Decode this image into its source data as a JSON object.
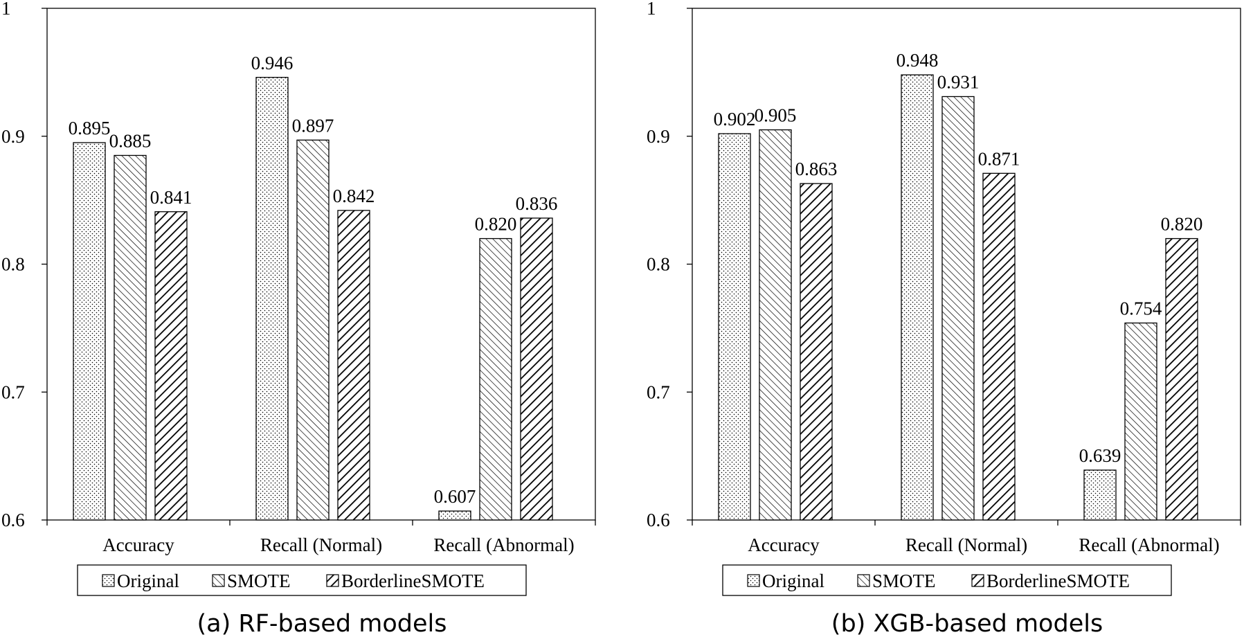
{
  "chart_data": [
    {
      "type": "bar",
      "caption": "(a) RF-based models",
      "categories": [
        "Accuracy",
        "Recall (Normal)",
        "Recall (Abnormal)"
      ],
      "series": [
        {
          "name": "Original",
          "pattern": "dots",
          "values": [
            0.895,
            0.946,
            0.607
          ]
        },
        {
          "name": "SMOTE",
          "pattern": "hatch-right",
          "values": [
            0.885,
            0.897,
            0.82
          ]
        },
        {
          "name": "BorderlineSMOTE",
          "pattern": "hatch-left",
          "values": [
            0.841,
            0.842,
            0.836
          ]
        }
      ],
      "ylim": [
        0.6,
        1
      ],
      "yticks": [
        "0.6",
        "0.7",
        "0.8",
        "0.9",
        "1"
      ],
      "data_labels": [
        [
          "0.895",
          "0.946",
          "0.607"
        ],
        [
          "0.885",
          "0.897",
          "0.820"
        ],
        [
          "0.841",
          "0.842",
          "0.836"
        ]
      ],
      "grid": false,
      "legend": "bottom"
    },
    {
      "type": "bar",
      "caption": "(b) XGB-based models",
      "categories": [
        "Accuracy",
        "Recall (Normal)",
        "Recall (Abnormal)"
      ],
      "series": [
        {
          "name": "Original",
          "pattern": "dots",
          "values": [
            0.902,
            0.948,
            0.639
          ]
        },
        {
          "name": "SMOTE",
          "pattern": "hatch-right",
          "values": [
            0.905,
            0.931,
            0.754
          ]
        },
        {
          "name": "BorderlineSMOTE",
          "pattern": "hatch-left",
          "values": [
            0.863,
            0.871,
            0.82
          ]
        }
      ],
      "ylim": [
        0.6,
        1
      ],
      "yticks": [
        "0.6",
        "0.7",
        "0.8",
        "0.9",
        "1"
      ],
      "data_labels": [
        [
          "0.902",
          "0.948",
          "0.639"
        ],
        [
          "0.905",
          "0.931",
          "0.754"
        ],
        [
          "0.863",
          "0.871",
          "0.820"
        ]
      ],
      "grid": false,
      "legend": "bottom"
    }
  ],
  "colors": {
    "bar_fill": "#ffffff",
    "stroke": "#000000",
    "hatch": "#000000"
  }
}
